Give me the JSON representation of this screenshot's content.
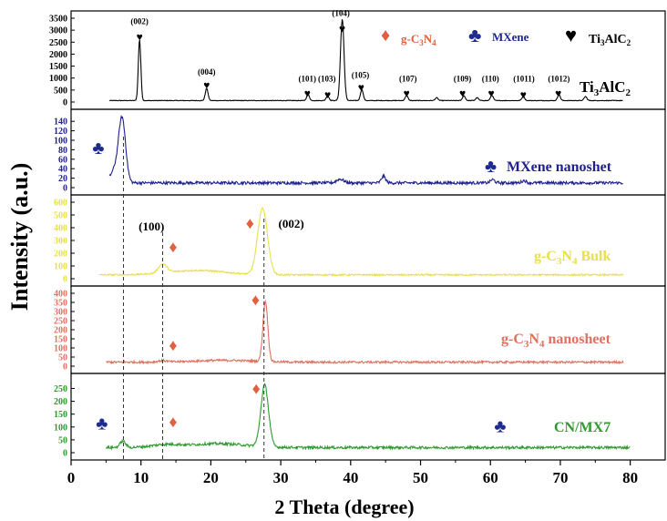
{
  "chart_data": {
    "type": "line",
    "xlabel": "2 Theta (degree)",
    "ylabel": "Intensity (a.u.)",
    "xlim": [
      0,
      85
    ],
    "x_ticks": [
      "0",
      "10",
      "20",
      "30",
      "40",
      "50",
      "60",
      "70",
      "80"
    ],
    "legend": {
      "diamond": "g-C3N4",
      "club": "MXene",
      "heart": "Ti3AlC2"
    },
    "markers": {
      "diamond": "♦",
      "club": "♣",
      "heart": "♥"
    },
    "colors": {
      "ti3alc2": "#000000",
      "mxene": "#1f1f8f",
      "bulk": "#e8e04a",
      "nanosheet": "#e07060",
      "cnmx7": "#2e9a2e",
      "diamond": "#e06040",
      "club": "#1f2a8f",
      "heart": "#000000"
    },
    "panels": [
      {
        "id": "ti3alc2",
        "label": "Ti3AlC2",
        "ylim": [
          0,
          3500
        ],
        "y_ticks": [
          0,
          500,
          1000,
          1500,
          2000,
          2500,
          3000,
          3500
        ],
        "y_tick_labels": [
          "0",
          "500",
          "1000",
          "1500",
          "2000",
          "2500",
          "3000",
          "3500"
        ],
        "x_range": [
          5.5,
          79
        ],
        "baseline": 60,
        "noise": 12,
        "peaks": [
          {
            "x": 9.8,
            "h": 2550,
            "w": 0.18
          },
          {
            "x": 19.4,
            "h": 500,
            "w": 0.2
          },
          {
            "x": 33.9,
            "h": 260,
            "w": 0.2
          },
          {
            "x": 36.7,
            "h": 200,
            "w": 0.2
          },
          {
            "x": 38.8,
            "h": 3400,
            "w": 0.25
          },
          {
            "x": 41.6,
            "h": 460,
            "w": 0.2
          },
          {
            "x": 48.0,
            "h": 210,
            "w": 0.2
          },
          {
            "x": 52.3,
            "h": 120,
            "w": 0.2
          },
          {
            "x": 56.2,
            "h": 200,
            "w": 0.2
          },
          {
            "x": 58.1,
            "h": 120,
            "w": 0.2
          },
          {
            "x": 60.2,
            "h": 220,
            "w": 0.2
          },
          {
            "x": 64.7,
            "h": 170,
            "w": 0.2
          },
          {
            "x": 69.8,
            "h": 240,
            "w": 0.2
          },
          {
            "x": 73.6,
            "h": 170,
            "w": 0.2
          }
        ],
        "annotations": [
          {
            "text": "(002)",
            "x": 9.8,
            "y": 3250
          },
          {
            "text": "(004)",
            "x": 19.4,
            "y": 1150
          },
          {
            "text": "(101)",
            "x": 33.8,
            "y": 850
          },
          {
            "text": "(103)",
            "x": 36.6,
            "y": 850
          },
          {
            "text": "(104)",
            "x": 38.6,
            "y": 3600
          },
          {
            "text": "(105)",
            "x": 41.4,
            "y": 1000
          },
          {
            "text": "(107)",
            "x": 48.2,
            "y": 850
          },
          {
            "text": "(109)",
            "x": 56.0,
            "y": 850
          },
          {
            "text": "(110)",
            "x": 60.0,
            "y": 850
          },
          {
            "text": "(1011)",
            "x": 64.8,
            "y": 850
          },
          {
            "text": "(1012)",
            "x": 69.8,
            "y": 850
          }
        ],
        "hearts": [
          {
            "x": 9.8,
            "y": 2750
          },
          {
            "x": 19.4,
            "y": 750
          },
          {
            "x": 33.8,
            "y": 400
          },
          {
            "x": 36.7,
            "y": 350
          },
          {
            "x": 38.8,
            "y": 3100
          },
          {
            "x": 41.5,
            "y": 650
          },
          {
            "x": 48.0,
            "y": 400
          },
          {
            "x": 56.0,
            "y": 400
          },
          {
            "x": 60.1,
            "y": 400
          },
          {
            "x": 64.7,
            "y": 350
          },
          {
            "x": 69.7,
            "y": 400
          }
        ]
      },
      {
        "id": "mxene",
        "label": "MXene nanoshet",
        "ylim": [
          0,
          150
        ],
        "y_ticks": [
          0,
          20,
          40,
          60,
          80,
          100,
          120,
          140
        ],
        "y_tick_labels": [
          "0",
          "20",
          "40",
          "60",
          "80",
          "100",
          "120",
          "140"
        ],
        "x_range": [
          5.5,
          79
        ],
        "baseline": 10,
        "noise": 3,
        "peaks": [
          {
            "x": 6.2,
            "h": 25,
            "w": 0.6
          },
          {
            "x": 7.3,
            "h": 135,
            "w": 0.5
          },
          {
            "x": 38.5,
            "h": 8,
            "w": 0.5
          },
          {
            "x": 44.7,
            "h": 14,
            "w": 0.3
          },
          {
            "x": 60.3,
            "h": 7,
            "w": 0.3
          },
          {
            "x": 64.8,
            "h": 5,
            "w": 0.3
          }
        ],
        "clubs": [
          {
            "x": 3.9,
            "y": 85
          }
        ]
      },
      {
        "id": "bulk",
        "label": "g-C3N4 Bulk",
        "ylim": [
          0,
          600
        ],
        "y_ticks": [
          0,
          100,
          200,
          300,
          400,
          500,
          600
        ],
        "y_tick_labels": [
          "0",
          "100",
          "200",
          "300",
          "400",
          "500",
          "600"
        ],
        "x_range": [
          4,
          79
        ],
        "baseline": 30,
        "noise": 6,
        "peaks": [
          {
            "x": 13.1,
            "h": 70,
            "w": 0.6
          },
          {
            "x": 18.0,
            "h": 35,
            "w": 4
          },
          {
            "x": 27.4,
            "h": 520,
            "w": 0.7
          }
        ],
        "annotations": [
          {
            "text": "(100)",
            "x": 11.5,
            "y": 380
          },
          {
            "text": "(002)",
            "x": 31.5,
            "y": 400
          }
        ],
        "diamonds": [
          {
            "x": 14.6,
            "y": 250
          },
          {
            "x": 25.6,
            "y": 435
          }
        ]
      },
      {
        "id": "nanosheet",
        "label": "g-C3N4 nanosheet",
        "ylim": [
          0,
          400
        ],
        "y_ticks": [
          0,
          50,
          100,
          150,
          200,
          250,
          300,
          350,
          400
        ],
        "y_tick_labels": [
          "0",
          "50",
          "100",
          "150",
          "200",
          "250",
          "300",
          "350",
          "400"
        ],
        "x_range": [
          5,
          79
        ],
        "baseline": 22,
        "noise": 6,
        "peaks": [
          {
            "x": 13.1,
            "h": 8,
            "w": 0.6
          },
          {
            "x": 22.0,
            "h": 10,
            "w": 4
          },
          {
            "x": 27.8,
            "h": 330,
            "w": 0.35
          }
        ],
        "diamonds": [
          {
            "x": 14.6,
            "y": 115
          },
          {
            "x": 26.4,
            "y": 365
          }
        ]
      },
      {
        "id": "cnmx7",
        "label": "CN/MX7",
        "ylim": [
          0,
          280
        ],
        "y_ticks": [
          0,
          50,
          100,
          150,
          200,
          250
        ],
        "y_tick_labels": [
          "0",
          "50",
          "100",
          "150",
          "200",
          "250"
        ],
        "x_range": [
          5,
          80
        ],
        "baseline": 20,
        "noise": 5,
        "peaks": [
          {
            "x": 7.4,
            "h": 25,
            "w": 0.4
          },
          {
            "x": 13.5,
            "h": 10,
            "w": 2
          },
          {
            "x": 21.0,
            "h": 15,
            "w": 4
          },
          {
            "x": 27.7,
            "h": 240,
            "w": 0.55
          }
        ],
        "diamonds": [
          {
            "x": 14.6,
            "y": 120
          },
          {
            "x": 26.5,
            "y": 250
          }
        ],
        "clubs": [
          {
            "x": 4.4,
            "y": 115
          },
          {
            "x": 61.4,
            "y": 105
          }
        ]
      }
    ],
    "dashed_lines_x": [
      7.5,
      13.1,
      27.6
    ]
  }
}
